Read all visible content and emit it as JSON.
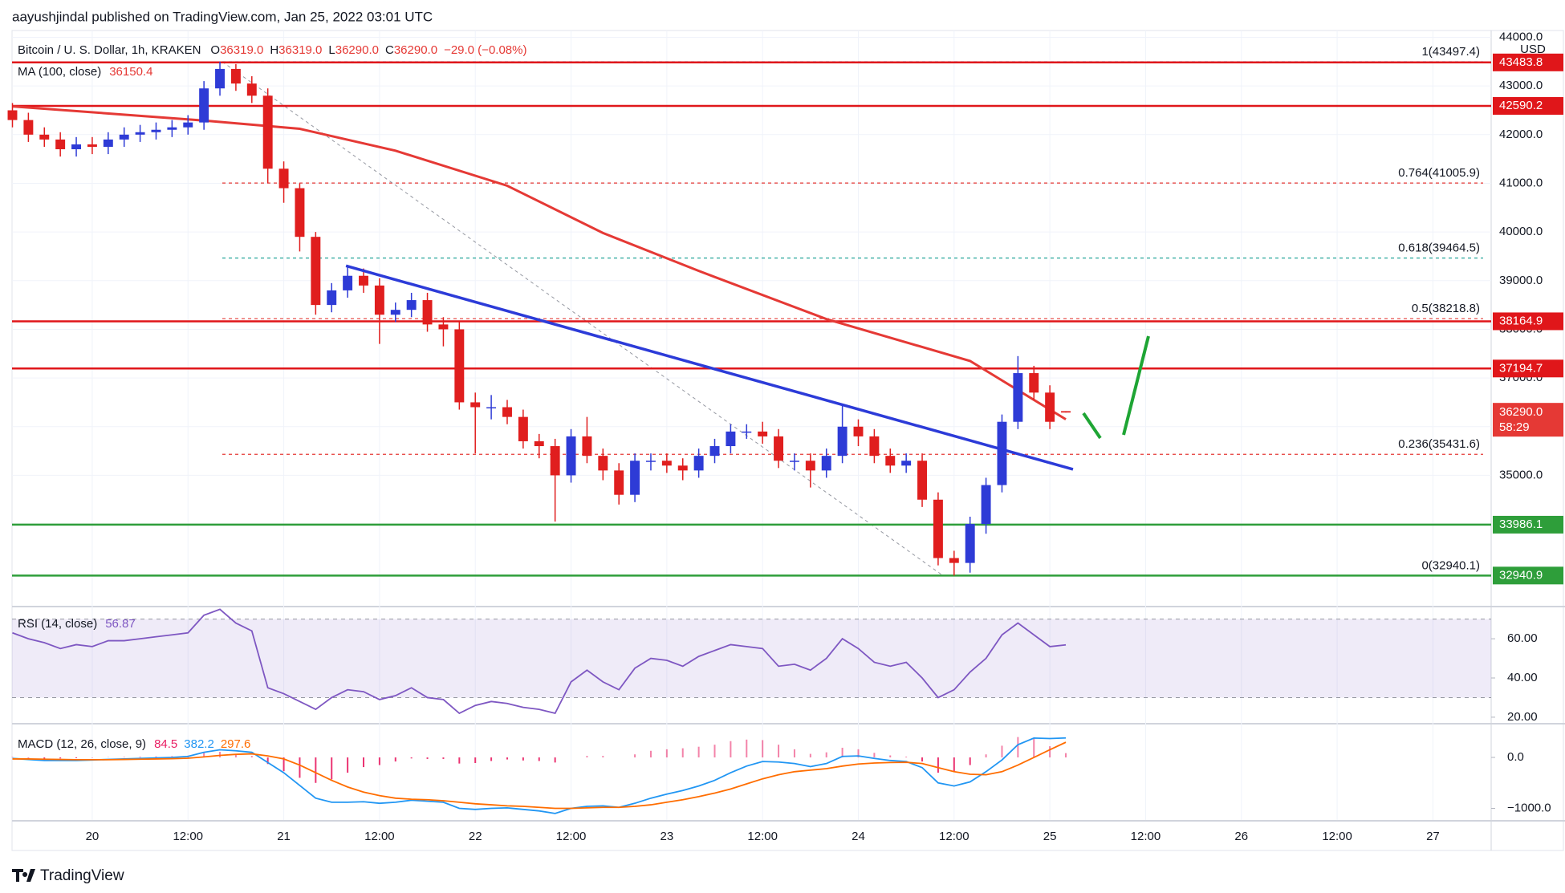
{
  "header": {
    "publisher": "aayushjindal published on TradingView.com, Jan 25, 2022 03:01 UTC",
    "footer": "TradingView"
  },
  "chart_data": {
    "type": "candlestick",
    "symbol": "Bitcoin / U. S. Dollar, 1h, KRAKEN",
    "ohlc": [
      {
        "key": "O",
        "value": "36319.0"
      },
      {
        "key": "H",
        "value": "36319.0"
      },
      {
        "key": "L",
        "value": "36290.0"
      },
      {
        "key": "C",
        "value": "36290.0"
      }
    ],
    "change": "−29.0 (−0.08%)",
    "currency": "USD",
    "up_color": "#2e3bd6",
    "down_color": "#e01e1e",
    "grid": true,
    "xlim": [
      13.95,
      199.3
    ],
    "xticks": [
      {
        "value": 24,
        "label": "20"
      },
      {
        "value": 36,
        "label": "12:00"
      },
      {
        "value": 48,
        "label": "21"
      },
      {
        "value": 60,
        "label": "12:00"
      },
      {
        "value": 72,
        "label": "22"
      },
      {
        "value": 84,
        "label": "12:00"
      },
      {
        "value": 96,
        "label": "23"
      },
      {
        "value": 108,
        "label": "12:00"
      },
      {
        "value": 120,
        "label": "24"
      },
      {
        "value": 132,
        "label": "12:00"
      },
      {
        "value": 144,
        "label": "25"
      },
      {
        "value": 156,
        "label": "12:00"
      },
      {
        "value": 168,
        "label": "26"
      },
      {
        "value": 180,
        "label": "12:00"
      },
      {
        "value": 192,
        "label": "27"
      }
    ],
    "ylim": [
      32320,
      44140
    ],
    "yticks": [
      {
        "value": 35000,
        "label": "35000.0"
      },
      {
        "value": 36000,
        "label": "36000.0"
      },
      {
        "value": 37000,
        "label": "37000.0"
      },
      {
        "value": 38000,
        "label": "38000.0"
      },
      {
        "value": 39000,
        "label": "39000.0"
      },
      {
        "value": 40000,
        "label": "40000.0"
      },
      {
        "value": 41000,
        "label": "41000.0"
      },
      {
        "value": 42000,
        "label": "42000.0"
      },
      {
        "value": 43000,
        "label": "43000.0"
      },
      {
        "value": 44000,
        "label": "44000.0"
      }
    ],
    "x": [
      14,
      16,
      18,
      20,
      22,
      24,
      26,
      28,
      30,
      32,
      34,
      36,
      38,
      40,
      42,
      44,
      46,
      48,
      50,
      52,
      54,
      56,
      58,
      60,
      62,
      64,
      66,
      68,
      70,
      72,
      74,
      76,
      78,
      80,
      82,
      84,
      86,
      88,
      90,
      92,
      94,
      96,
      98,
      100,
      102,
      104,
      106,
      108,
      110,
      112,
      114,
      116,
      118,
      120,
      122,
      124,
      126,
      128,
      130,
      132,
      134,
      136,
      138,
      140,
      142,
      144,
      146
    ],
    "open": [
      42500,
      42300,
      42000,
      41900,
      41700,
      41800,
      41750,
      41900,
      42000,
      42050,
      42100,
      42150,
      42250,
      42950,
      43350,
      43050,
      42800,
      41300,
      40900,
      39900,
      38500,
      38800,
      39100,
      38900,
      38300,
      38400,
      38600,
      38100,
      38000,
      36500,
      36400,
      36400,
      36200,
      35700,
      35600,
      35000,
      35800,
      35400,
      35100,
      34600,
      35300,
      35300,
      35200,
      35100,
      35400,
      35600,
      35900,
      35900,
      35800,
      35300,
      35300,
      35100,
      35400,
      36000,
      35800,
      35400,
      35200,
      35300,
      34500,
      33300,
      33200,
      34000,
      34800,
      36100,
      37100,
      36700,
      36319
    ],
    "high": [
      42650,
      42450,
      42150,
      42050,
      41950,
      41950,
      42050,
      42150,
      42200,
      42250,
      42300,
      42400,
      43100,
      43497,
      43450,
      43200,
      42950,
      41450,
      41000,
      40000,
      38950,
      39300,
      39250,
      39050,
      38550,
      38750,
      38750,
      38250,
      38150,
      36700,
      36650,
      36550,
      36350,
      35850,
      35750,
      35950,
      36200,
      35550,
      35250,
      35450,
      35450,
      35450,
      35350,
      35550,
      35750,
      36050,
      36050,
      36100,
      35950,
      35450,
      35450,
      35550,
      36450,
      36150,
      35950,
      35550,
      35450,
      35450,
      34650,
      33450,
      34150,
      34950,
      36250,
      37450,
      37250,
      36850,
      36319
    ],
    "low": [
      42150,
      41850,
      41750,
      41550,
      41550,
      41600,
      41600,
      41750,
      41850,
      41900,
      41950,
      42000,
      42100,
      42800,
      42900,
      42650,
      41000,
      40600,
      39600,
      38300,
      38350,
      38650,
      38750,
      37700,
      38150,
      38250,
      37950,
      37650,
      36350,
      35450,
      36150,
      36050,
      35550,
      35350,
      34050,
      34850,
      35250,
      34900,
      34400,
      34450,
      35100,
      35050,
      34900,
      34950,
      35250,
      35450,
      35750,
      35650,
      35150,
      35100,
      34750,
      34950,
      35250,
      35600,
      35250,
      35050,
      35050,
      34350,
      33150,
      32940,
      33000,
      33800,
      34650,
      35950,
      36550,
      35950,
      36290
    ],
    "close": [
      42300,
      42000,
      41900,
      41700,
      41800,
      41750,
      41900,
      42000,
      42050,
      42100,
      42150,
      42250,
      42950,
      43350,
      43050,
      42800,
      41300,
      40900,
      39900,
      38500,
      38800,
      39100,
      38900,
      38300,
      38400,
      38600,
      38100,
      38000,
      36500,
      36400,
      36400,
      36200,
      35700,
      35600,
      35000,
      35800,
      35400,
      35100,
      34600,
      35300,
      35300,
      35200,
      35100,
      35400,
      35600,
      35900,
      35900,
      35800,
      35300,
      35300,
      35100,
      35400,
      36000,
      35800,
      35400,
      35200,
      35300,
      34500,
      33300,
      33200,
      34000,
      34800,
      36100,
      37100,
      36700,
      36100,
      36290
    ],
    "last_price": {
      "label": "36290.0",
      "countdown": "58:29",
      "color": "#e53935"
    },
    "ma": {
      "name": "MA (100, close)",
      "value_label": "36150.4",
      "color": "#e53935",
      "x": [
        14,
        38,
        50,
        62,
        76,
        88,
        100,
        116,
        134,
        146
      ],
      "values": [
        42580,
        42290,
        42120,
        41670,
        40950,
        39980,
        39200,
        38210,
        37350,
        36150.4
      ]
    },
    "levels": [
      {
        "value": 43483.8,
        "label": "43483.8",
        "color": "#e0161a"
      },
      {
        "value": 42590.2,
        "label": "42590.2",
        "color": "#e0161a"
      },
      {
        "value": 38164.9,
        "label": "38164.9",
        "color": "#e0161a"
      },
      {
        "value": 37194.7,
        "label": "37194.7",
        "color": "#e0161a"
      },
      {
        "value": 33986.1,
        "label": "33986.1",
        "color": "#2e9e3a"
      },
      {
        "value": 32940.9,
        "label": "32940.9",
        "color": "#2e9e3a"
      }
    ],
    "fib": {
      "x": [
        40.3,
        130.6
      ],
      "levels": [
        {
          "value": 43497.4,
          "label": "1(43497.4)",
          "color": "#5b9bd5"
        },
        {
          "value": 41005.9,
          "label": "0.764(41005.9)",
          "color": "#e53935"
        },
        {
          "value": 39464.5,
          "label": "0.618(39464.5)",
          "color": "#26a69a"
        },
        {
          "value": 38218.8,
          "label": "0.5(38218.8)",
          "color": "#e53935"
        },
        {
          "value": 35431.6,
          "label": "0.236(35431.6)",
          "color": "#e53935"
        },
        {
          "value": 32940.1,
          "label": "0(32940.1)",
          "color": "#787b86"
        }
      ]
    },
    "trendline": {
      "color": "#2c3bd8",
      "x": [
        55.8,
        146.9
      ],
      "values": [
        39304,
        35124
      ]
    },
    "rsi": {
      "type": "line",
      "title": "RSI (14, close)",
      "value_label": "56.87",
      "color": "#7e57c2",
      "ylim": [
        17.5,
        76
      ],
      "bands": [
        30,
        70
      ],
      "yticks": [
        {
          "value": 60,
          "label": "60.00"
        },
        {
          "value": 40,
          "label": "40.00"
        },
        {
          "value": 20,
          "label": "20.00"
        }
      ],
      "values": [
        63,
        60,
        58,
        55,
        57,
        56,
        59,
        59,
        60,
        61,
        62,
        63,
        72,
        75,
        68,
        64,
        35,
        32,
        28,
        24,
        30,
        34,
        33,
        29,
        31,
        35,
        30,
        29,
        22,
        26,
        28,
        27,
        25,
        24,
        22,
        38,
        44,
        38,
        34,
        45,
        50,
        49,
        46,
        51,
        54,
        57,
        56,
        55,
        46,
        47,
        44,
        50,
        60,
        55,
        48,
        46,
        48,
        40,
        30,
        34,
        43,
        50,
        62,
        68,
        62,
        56,
        56.87
      ]
    },
    "macd": {
      "type": "macd",
      "title": "MACD (12, 26, close, 9)",
      "ylim": [
        -1228,
        646
      ],
      "yticks": [
        {
          "value": 0,
          "label": "0.0"
        },
        {
          "value": -1000,
          "label": "−1000.0"
        }
      ],
      "series": [
        {
          "name": "84.5",
          "color": "#e91e63",
          "values": [
            10,
            -10,
            -25,
            -20,
            -15,
            -5,
            5,
            10,
            15,
            20,
            25,
            35,
            90,
            110,
            70,
            30,
            -130,
            -270,
            -400,
            -500,
            -430,
            -300,
            -190,
            -150,
            -80,
            -20,
            -30,
            -30,
            -120,
            -110,
            -70,
            -40,
            -60,
            -70,
            -100,
            0,
            30,
            30,
            0,
            60,
            130,
            160,
            180,
            210,
            250,
            320,
            350,
            340,
            250,
            160,
            70,
            100,
            190,
            160,
            90,
            40,
            15,
            -80,
            -300,
            -280,
            -150,
            60,
            230,
            400,
            380,
            220,
            84.5
          ]
        },
        {
          "name": "382.2",
          "color": "#2196f3",
          "values": [
            -20,
            -40,
            -60,
            -60,
            -60,
            -50,
            -40,
            -30,
            -20,
            -10,
            0,
            20,
            100,
            150,
            130,
            100,
            -100,
            -300,
            -550,
            -800,
            -880,
            -880,
            -870,
            -900,
            -880,
            -840,
            -860,
            -880,
            -1000,
            -1020,
            -1000,
            -990,
            -1020,
            -1050,
            -1100,
            -1000,
            -960,
            -950,
            -980,
            -900,
            -800,
            -720,
            -650,
            -560,
            -450,
            -300,
            -170,
            -80,
            -90,
            -120,
            -180,
            -120,
            20,
            30,
            -20,
            -60,
            -80,
            -200,
            -500,
            -560,
            -480,
            -280,
            -50,
            250,
            380,
            370,
            382.2
          ]
        },
        {
          "name": "297.6",
          "color": "#ff6d00",
          "values": [
            -30,
            -30,
            -35,
            -40,
            -45,
            -45,
            -45,
            -40,
            -35,
            -30,
            -25,
            -15,
            10,
            40,
            60,
            70,
            30,
            -30,
            -150,
            -300,
            -450,
            -580,
            -680,
            -750,
            -800,
            -820,
            -830,
            -850,
            -880,
            -910,
            -930,
            -950,
            -960,
            -980,
            -1000,
            -1000,
            -990,
            -980,
            -980,
            -960,
            -930,
            -880,
            -830,
            -770,
            -700,
            -620,
            -520,
            -420,
            -340,
            -280,
            -250,
            -220,
            -170,
            -130,
            -110,
            -100,
            -95,
            -120,
            -200,
            -280,
            -330,
            -340,
            -280,
            -150,
            0,
            150,
            297.6
          ]
        }
      ]
    }
  }
}
